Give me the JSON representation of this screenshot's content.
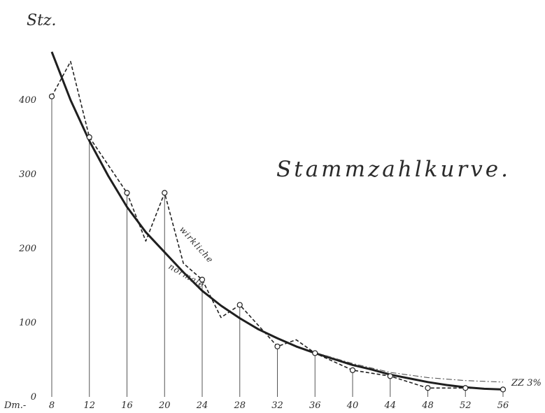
{
  "chart_data": {
    "type": "line",
    "title": "Stammzahlkurve.",
    "ylabel": "Stz.",
    "xlabel": "Dm.-",
    "x_ticks": [
      8,
      12,
      16,
      20,
      24,
      28,
      32,
      36,
      40,
      44,
      48,
      52,
      56
    ],
    "x_tick_labels": [
      "8",
      "12",
      "16",
      "20",
      "24",
      "28",
      "32",
      "36",
      "40",
      "44",
      "48",
      "52",
      "56"
    ],
    "y_ticks": [
      0,
      100,
      200,
      300,
      400
    ],
    "y_tick_labels": [
      "0",
      "100",
      "200",
      "300",
      "400"
    ],
    "xlim": [
      8,
      56
    ],
    "ylim": [
      0,
      480
    ],
    "grid": false,
    "annotation": "ZZ 3%",
    "series": [
      {
        "name": "wirkliche",
        "style": "dashed",
        "x": [
          8,
          10,
          12,
          16,
          18,
          20,
          22,
          24,
          26,
          28,
          32,
          34,
          36,
          40,
          44,
          48,
          52,
          56
        ],
        "values": [
          405,
          452,
          350,
          275,
          210,
          275,
          180,
          158,
          107,
          124,
          68,
          77,
          59,
          36,
          28,
          12,
          12,
          10
        ],
        "markers_at": [
          8,
          12,
          16,
          20,
          24,
          28,
          32,
          36,
          40,
          44,
          48,
          52,
          56
        ]
      },
      {
        "name": "normale",
        "style": "solid",
        "x": [
          8,
          10,
          12,
          14,
          16,
          18,
          20,
          22,
          24,
          26,
          28,
          30,
          32,
          34,
          36,
          38,
          40,
          42,
          44,
          46,
          48,
          50,
          52,
          54,
          56
        ],
        "values": [
          465,
          400,
          345,
          298,
          256,
          222,
          195,
          168,
          143,
          123,
          106,
          91,
          79,
          68,
          59,
          51,
          43,
          37,
          30,
          25,
          20,
          16,
          13,
          11,
          10
        ]
      },
      {
        "style": "dash-dot",
        "x": [
          36,
          40,
          44,
          48,
          52,
          56
        ],
        "values": [
          60,
          45,
          33,
          26,
          22,
          20
        ]
      }
    ]
  }
}
